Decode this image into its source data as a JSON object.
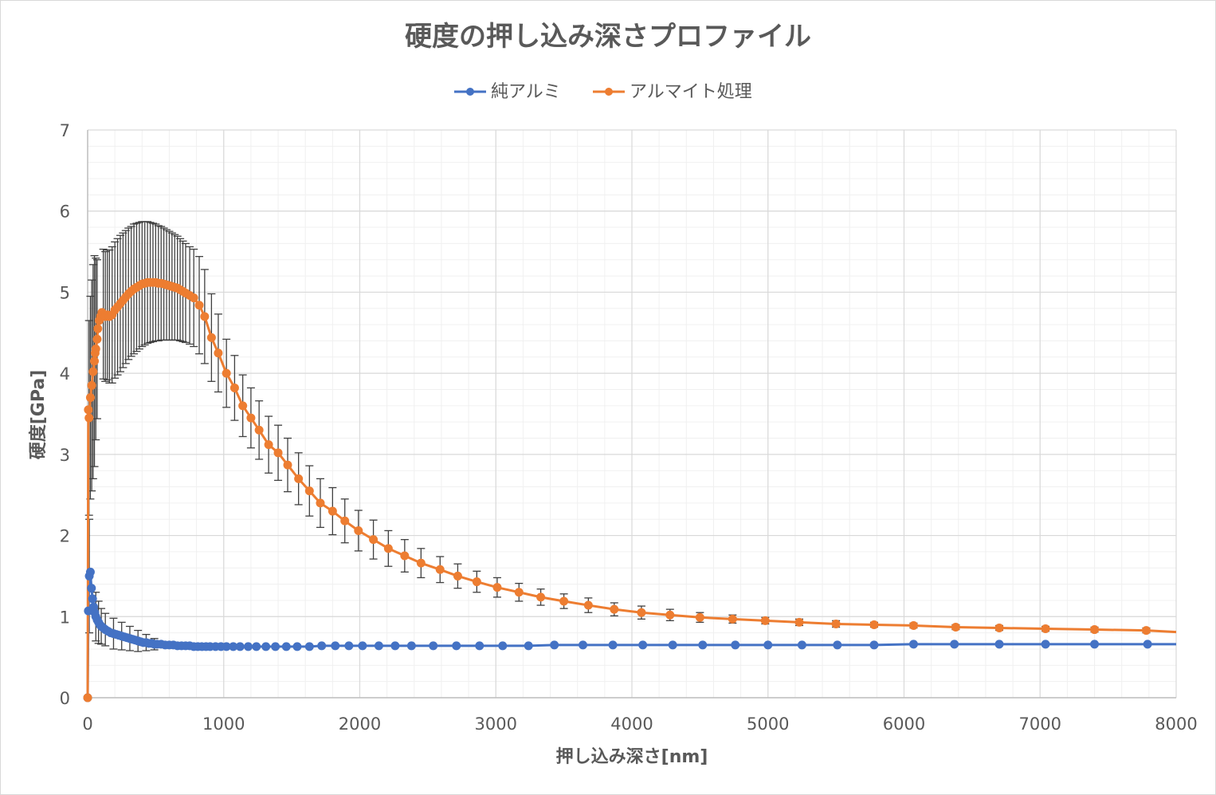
{
  "chart_data": {
    "type": "scatter",
    "title": "硬度の押し込み深さプロファイル",
    "xlabel": "押し込み深さ[nm]",
    "ylabel": "硬度[GPa]",
    "xlim": [
      0,
      8000
    ],
    "ylim": [
      0,
      7
    ],
    "x_ticks": [
      0,
      1000,
      2000,
      3000,
      4000,
      5000,
      6000,
      7000,
      8000
    ],
    "y_ticks": [
      0,
      1,
      2,
      3,
      4,
      5,
      6,
      7
    ],
    "x_minor_step": 200,
    "y_minor_step": 0.2,
    "grid": true,
    "legend_position": "top-center",
    "series": [
      {
        "name": "純アルミ",
        "color": "#4472C4",
        "points": [
          [
            0,
            0
          ],
          [
            5,
            1.07
          ],
          [
            12,
            1.5
          ],
          [
            20,
            1.55
          ],
          [
            28,
            1.35
          ],
          [
            36,
            1.22
          ],
          [
            44,
            1.12
          ],
          [
            52,
            1.05
          ],
          [
            60,
            1.0
          ],
          [
            70,
            0.96
          ],
          [
            80,
            0.93
          ],
          [
            90,
            0.9
          ],
          [
            100,
            0.88
          ],
          [
            115,
            0.86
          ],
          [
            130,
            0.84
          ],
          [
            150,
            0.82
          ],
          [
            170,
            0.8
          ],
          [
            190,
            0.79
          ],
          [
            210,
            0.78
          ],
          [
            230,
            0.77
          ],
          [
            250,
            0.76
          ],
          [
            270,
            0.75
          ],
          [
            290,
            0.74
          ],
          [
            310,
            0.73
          ],
          [
            330,
            0.72
          ],
          [
            350,
            0.71
          ],
          [
            370,
            0.7
          ],
          [
            390,
            0.69
          ],
          [
            410,
            0.68
          ],
          [
            430,
            0.68
          ],
          [
            450,
            0.67
          ],
          [
            470,
            0.67
          ],
          [
            490,
            0.66
          ],
          [
            510,
            0.66
          ],
          [
            540,
            0.66
          ],
          [
            570,
            0.65
          ],
          [
            600,
            0.65
          ],
          [
            630,
            0.65
          ],
          [
            660,
            0.64
          ],
          [
            690,
            0.64
          ],
          [
            720,
            0.64
          ],
          [
            750,
            0.64
          ],
          [
            780,
            0.63
          ],
          [
            810,
            0.63
          ],
          [
            840,
            0.63
          ],
          [
            870,
            0.63
          ],
          [
            900,
            0.63
          ],
          [
            940,
            0.63
          ],
          [
            980,
            0.63
          ],
          [
            1020,
            0.63
          ],
          [
            1070,
            0.63
          ],
          [
            1120,
            0.63
          ],
          [
            1180,
            0.63
          ],
          [
            1240,
            0.63
          ],
          [
            1310,
            0.63
          ],
          [
            1380,
            0.63
          ],
          [
            1460,
            0.63
          ],
          [
            1540,
            0.63
          ],
          [
            1630,
            0.63
          ],
          [
            1720,
            0.64
          ],
          [
            1820,
            0.64
          ],
          [
            1920,
            0.64
          ],
          [
            2020,
            0.64
          ],
          [
            2140,
            0.64
          ],
          [
            2260,
            0.64
          ],
          [
            2380,
            0.64
          ],
          [
            2540,
            0.64
          ],
          [
            2710,
            0.64
          ],
          [
            2880,
            0.64
          ],
          [
            3050,
            0.64
          ],
          [
            3240,
            0.64
          ],
          [
            3430,
            0.65
          ],
          [
            3640,
            0.65
          ],
          [
            3860,
            0.65
          ],
          [
            4080,
            0.65
          ],
          [
            4300,
            0.65
          ],
          [
            4520,
            0.65
          ],
          [
            4760,
            0.65
          ],
          [
            5000,
            0.65
          ],
          [
            5250,
            0.65
          ],
          [
            5510,
            0.65
          ],
          [
            5780,
            0.65
          ],
          [
            6070,
            0.66
          ],
          [
            6370,
            0.66
          ],
          [
            6700,
            0.66
          ],
          [
            7040,
            0.66
          ],
          [
            7400,
            0.66
          ],
          [
            7790,
            0.66
          ],
          [
            8000,
            0.66
          ]
        ],
        "error": [
          [
            12,
            0.7
          ],
          [
            24,
            0.55
          ],
          [
            40,
            0.4
          ],
          [
            60,
            0.3
          ],
          [
            80,
            0.26
          ],
          [
            100,
            0.22
          ],
          [
            130,
            0.2
          ],
          [
            160,
            0.2
          ],
          [
            190,
            0.19
          ],
          [
            220,
            0.18
          ],
          [
            250,
            0.17
          ],
          [
            280,
            0.16
          ],
          [
            310,
            0.15
          ],
          [
            340,
            0.14
          ],
          [
            370,
            0.13
          ],
          [
            400,
            0.12
          ],
          [
            430,
            0.1
          ],
          [
            460,
            0.09
          ],
          [
            490,
            0.07
          ],
          [
            520,
            0.06
          ],
          [
            560,
            0.05
          ],
          [
            600,
            0.04
          ],
          [
            650,
            0.03
          ],
          [
            700,
            0.03
          ],
          [
            760,
            0.02
          ],
          [
            820,
            0.02
          ],
          [
            880,
            0.02
          ]
        ]
      },
      {
        "name": "アルマイト処理",
        "color": "#ED7D31",
        "points": [
          [
            0,
            0
          ],
          [
            5,
            3.55
          ],
          [
            10,
            3.45
          ],
          [
            20,
            3.7
          ],
          [
            30,
            3.85
          ],
          [
            40,
            4.02
          ],
          [
            50,
            4.15
          ],
          [
            55,
            4.25
          ],
          [
            60,
            4.3
          ],
          [
            70,
            4.42
          ],
          [
            75,
            4.55
          ],
          [
            85,
            4.65
          ],
          [
            95,
            4.7
          ],
          [
            105,
            4.75
          ],
          [
            115,
            4.73
          ],
          [
            130,
            4.7
          ],
          [
            145,
            4.72
          ],
          [
            160,
            4.7
          ],
          [
            180,
            4.72
          ],
          [
            200,
            4.78
          ],
          [
            220,
            4.82
          ],
          [
            240,
            4.86
          ],
          [
            260,
            4.9
          ],
          [
            280,
            4.94
          ],
          [
            300,
            4.98
          ],
          [
            320,
            5.01
          ],
          [
            340,
            5.04
          ],
          [
            360,
            5.06
          ],
          [
            380,
            5.08
          ],
          [
            400,
            5.1
          ],
          [
            420,
            5.11
          ],
          [
            440,
            5.12
          ],
          [
            460,
            5.12
          ],
          [
            480,
            5.12
          ],
          [
            500,
            5.12
          ],
          [
            520,
            5.11
          ],
          [
            540,
            5.11
          ],
          [
            560,
            5.1
          ],
          [
            580,
            5.09
          ],
          [
            600,
            5.08
          ],
          [
            620,
            5.07
          ],
          [
            640,
            5.06
          ],
          [
            660,
            5.05
          ],
          [
            680,
            5.03
          ],
          [
            700,
            5.01
          ],
          [
            720,
            4.99
          ],
          [
            750,
            4.96
          ],
          [
            780,
            4.93
          ],
          [
            820,
            4.84
          ],
          [
            860,
            4.7
          ],
          [
            910,
            4.44
          ],
          [
            960,
            4.25
          ],
          [
            1020,
            4.0
          ],
          [
            1080,
            3.82
          ],
          [
            1140,
            3.6
          ],
          [
            1200,
            3.45
          ],
          [
            1260,
            3.3
          ],
          [
            1330,
            3.12
          ],
          [
            1400,
            3.02
          ],
          [
            1470,
            2.87
          ],
          [
            1550,
            2.7
          ],
          [
            1630,
            2.55
          ],
          [
            1710,
            2.4
          ],
          [
            1800,
            2.3
          ],
          [
            1890,
            2.18
          ],
          [
            1990,
            2.06
          ],
          [
            2100,
            1.95
          ],
          [
            2210,
            1.84
          ],
          [
            2330,
            1.75
          ],
          [
            2450,
            1.66
          ],
          [
            2590,
            1.58
          ],
          [
            2720,
            1.5
          ],
          [
            2860,
            1.43
          ],
          [
            3010,
            1.36
          ],
          [
            3170,
            1.3
          ],
          [
            3330,
            1.24
          ],
          [
            3500,
            1.19
          ],
          [
            3680,
            1.14
          ],
          [
            3870,
            1.09
          ],
          [
            4070,
            1.05
          ],
          [
            4280,
            1.02
          ],
          [
            4500,
            0.99
          ],
          [
            4740,
            0.97
          ],
          [
            4980,
            0.95
          ],
          [
            5230,
            0.93
          ],
          [
            5500,
            0.91
          ],
          [
            5780,
            0.9
          ],
          [
            6070,
            0.89
          ],
          [
            6380,
            0.87
          ],
          [
            6700,
            0.86
          ],
          [
            7040,
            0.85
          ],
          [
            7400,
            0.84
          ],
          [
            7780,
            0.83
          ],
          [
            8000,
            0.81
          ]
        ],
        "error": [
          [
            10,
            1.2
          ],
          [
            20,
            1.25
          ],
          [
            30,
            1.3
          ],
          [
            40,
            1.32
          ],
          [
            50,
            1.3
          ],
          [
            60,
            1.12
          ],
          [
            70,
            0.98
          ],
          [
            80,
            0.92
          ],
          [
            90,
            0.88
          ],
          [
            100,
            0.82
          ],
          [
            115,
            0.8
          ],
          [
            130,
            0.8
          ],
          [
            145,
            0.8
          ],
          [
            160,
            0.82
          ],
          [
            180,
            0.84
          ],
          [
            200,
            0.84
          ],
          [
            220,
            0.84
          ],
          [
            240,
            0.84
          ],
          [
            260,
            0.83
          ],
          [
            280,
            0.82
          ],
          [
            300,
            0.81
          ],
          [
            320,
            0.8
          ],
          [
            340,
            0.8
          ],
          [
            360,
            0.79
          ],
          [
            380,
            0.78
          ],
          [
            400,
            0.77
          ],
          [
            420,
            0.76
          ],
          [
            440,
            0.75
          ],
          [
            460,
            0.74
          ],
          [
            480,
            0.73
          ],
          [
            500,
            0.72
          ],
          [
            520,
            0.71
          ],
          [
            540,
            0.7
          ],
          [
            560,
            0.69
          ],
          [
            580,
            0.68
          ],
          [
            600,
            0.67
          ],
          [
            620,
            0.66
          ],
          [
            640,
            0.65
          ],
          [
            660,
            0.64
          ],
          [
            680,
            0.63
          ],
          [
            700,
            0.62
          ],
          [
            720,
            0.61
          ],
          [
            750,
            0.6
          ],
          [
            780,
            0.6
          ],
          [
            820,
            0.6
          ],
          [
            860,
            0.58
          ],
          [
            910,
            0.54
          ],
          [
            960,
            0.48
          ],
          [
            1020,
            0.42
          ],
          [
            1080,
            0.4
          ],
          [
            1140,
            0.38
          ],
          [
            1200,
            0.37
          ],
          [
            1260,
            0.36
          ],
          [
            1330,
            0.35
          ],
          [
            1400,
            0.34
          ],
          [
            1470,
            0.33
          ],
          [
            1550,
            0.32
          ],
          [
            1630,
            0.31
          ],
          [
            1710,
            0.3
          ],
          [
            1800,
            0.29
          ],
          [
            1890,
            0.27
          ],
          [
            1990,
            0.25
          ],
          [
            2100,
            0.24
          ],
          [
            2210,
            0.22
          ],
          [
            2330,
            0.2
          ],
          [
            2450,
            0.18
          ],
          [
            2590,
            0.16
          ],
          [
            2720,
            0.15
          ],
          [
            2860,
            0.13
          ],
          [
            3010,
            0.12
          ],
          [
            3170,
            0.11
          ],
          [
            3330,
            0.1
          ],
          [
            3500,
            0.09
          ],
          [
            3680,
            0.09
          ],
          [
            3870,
            0.08
          ],
          [
            4070,
            0.08
          ],
          [
            4280,
            0.07
          ],
          [
            4500,
            0.06
          ],
          [
            4740,
            0.05
          ],
          [
            4980,
            0.04
          ],
          [
            5230,
            0.04
          ],
          [
            5500,
            0.04
          ],
          [
            5780,
            0.03
          ],
          [
            6070,
            0.03
          ],
          [
            6380,
            0.03
          ],
          [
            6700,
            0.03
          ],
          [
            7040,
            0.03
          ],
          [
            7400,
            0.03
          ],
          [
            7780,
            0.03
          ]
        ]
      }
    ]
  }
}
